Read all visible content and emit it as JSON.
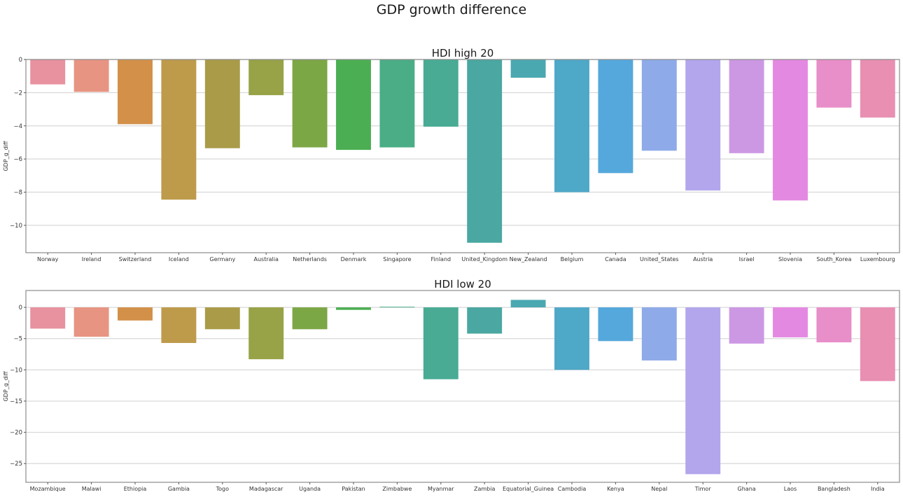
{
  "title": "GDP growth difference",
  "chart_data": [
    {
      "type": "bar",
      "title": "HDI high 20",
      "xlabel": "",
      "ylabel": "GDP_g_diff",
      "ylim": [
        -11.65,
        0
      ],
      "yticks": [
        0,
        -2,
        -4,
        -6,
        -8,
        -10
      ],
      "grid": "horizontal",
      "categories": [
        "Norway",
        "Ireland",
        "Switzerland",
        "Iceland",
        "Germany",
        "Australia",
        "Netherlands",
        "Denmark",
        "Singapore",
        "Finland",
        "United_Kingdom",
        "New_Zealand",
        "Belgium",
        "Canada",
        "United_States",
        "Austria",
        "Israel",
        "Slovenia",
        "South_Korea",
        "Luxembourg"
      ],
      "values": [
        -1.5,
        -1.95,
        -3.9,
        -8.45,
        -5.35,
        -2.15,
        -5.3,
        -5.45,
        -5.3,
        -4.05,
        -11.05,
        -1.1,
        -8.0,
        -6.85,
        -5.5,
        -7.9,
        -5.65,
        -8.5,
        -2.9,
        -3.5
      ],
      "colors": [
        "#e8919f",
        "#e79482",
        "#d39049",
        "#be9a4b",
        "#aa9b48",
        "#98a246",
        "#7ca745",
        "#4bae52",
        "#4aad85",
        "#49ab94",
        "#4aa7a1",
        "#4aa8b1",
        "#4ea8c8",
        "#55a8db",
        "#8eaae8",
        "#b3a6ec",
        "#cc98e4",
        "#e489e2",
        "#e88ec8",
        "#e88fb2"
      ]
    },
    {
      "type": "bar",
      "title": "HDI low 20",
      "xlabel": "",
      "ylabel": "GDP_g_diff",
      "ylim": [
        -28,
        2.7
      ],
      "yticks": [
        0,
        -5,
        -10,
        -15,
        -20,
        -25
      ],
      "grid": "horizontal",
      "categories": [
        "Mozambique",
        "Malawi",
        "Ethiopia",
        "Gambia",
        "Togo",
        "Madagascar",
        "Uganda",
        "Pakistan",
        "Zimbabwe",
        "Myanmar",
        "Zambia",
        "Equatorial_Guinea",
        "Cambodia",
        "Kenya",
        "Nepal",
        "Timor",
        "Ghana",
        "Laos",
        "Bangladesh",
        "India"
      ],
      "values": [
        -3.4,
        -4.7,
        -2.1,
        -5.7,
        -3.5,
        -8.3,
        -3.5,
        -0.4,
        0.1,
        -11.5,
        -4.2,
        1.2,
        -10.0,
        -5.4,
        -8.5,
        -26.7,
        -5.8,
        -4.8,
        -5.6,
        -11.8
      ],
      "colors": [
        "#e8919f",
        "#e79482",
        "#d39049",
        "#be9a4b",
        "#aa9b48",
        "#98a246",
        "#7ca745",
        "#4bae52",
        "#4aad85",
        "#49ab94",
        "#4aa7a1",
        "#4aa8b1",
        "#4ea8c8",
        "#55a8db",
        "#8eaae8",
        "#b3a6ec",
        "#cc98e4",
        "#e489e2",
        "#e88ec8",
        "#e88fb2"
      ]
    }
  ]
}
